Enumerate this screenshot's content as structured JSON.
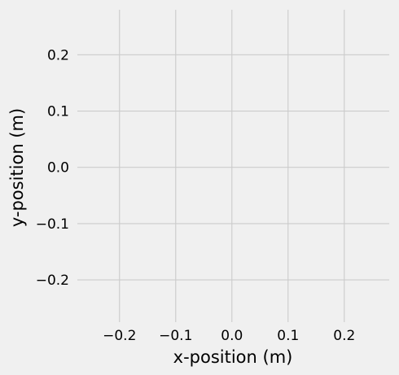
{
  "chart_data": {
    "type": "scatter",
    "title": "",
    "xlabel": "x-position (m)",
    "ylabel": "y-position (m)",
    "xlim": [
      -0.275,
      0.28
    ],
    "ylim": [
      -0.275,
      0.28
    ],
    "xticks": [
      -0.2,
      -0.1,
      0.0,
      0.1,
      0.2
    ],
    "yticks": [
      -0.2,
      -0.1,
      0.0,
      0.1,
      0.2
    ],
    "xtick_labels": [
      "−0.2",
      "−0.1",
      "0.0",
      "0.1",
      "0.2"
    ],
    "ytick_labels": [
      "−0.2",
      "−0.1",
      "0.0",
      "0.1",
      "0.2"
    ],
    "grid": true,
    "series": []
  },
  "colors": {
    "background": "#f0f0f0",
    "grid": "#cbcbcb",
    "text": "#000000"
  }
}
